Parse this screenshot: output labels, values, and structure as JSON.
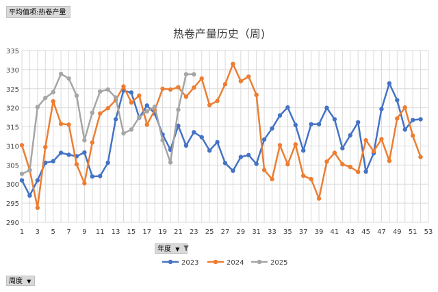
{
  "pivot": {
    "value_field": "平均值项:热卷产量",
    "filter_field": "年度",
    "axis_field": "周度"
  },
  "icons": {
    "filter": "filter-icon",
    "dropdown": "dropdown-arrow-icon"
  },
  "chart_data": {
    "type": "line",
    "title": "热卷产量历史（周)",
    "xlabel": "",
    "ylabel": "",
    "ylim": [
      290,
      335
    ],
    "yticks": [
      290,
      295,
      300,
      305,
      310,
      315,
      320,
      325,
      330,
      335
    ],
    "xlim": [
      1,
      53
    ],
    "xticks": [
      1,
      3,
      5,
      7,
      9,
      11,
      13,
      15,
      17,
      19,
      21,
      23,
      25,
      27,
      29,
      31,
      33,
      35,
      37,
      39,
      41,
      43,
      45,
      47,
      49,
      51,
      53
    ],
    "grid": true,
    "legend_position": "bottom",
    "series": [
      {
        "name": "2023",
        "color": "#4472c4",
        "x": [
          1,
          2,
          3,
          4,
          5,
          6,
          7,
          8,
          9,
          10,
          11,
          12,
          13,
          14,
          15,
          16,
          17,
          18,
          19,
          20,
          21,
          22,
          23,
          24,
          25,
          26,
          27,
          28,
          29,
          30,
          31,
          32,
          33,
          34,
          35,
          36,
          37,
          38,
          39,
          40,
          41,
          42,
          43,
          44,
          45,
          46,
          47,
          48,
          49,
          50,
          51,
          52
        ],
        "values": [
          301.0,
          297.0,
          301.0,
          305.6,
          306.0,
          308.2,
          307.7,
          307.3,
          308.3,
          302.0,
          302.1,
          305.6,
          317.0,
          324.5,
          324.0,
          317.4,
          320.6,
          318.5,
          313.0,
          309.0,
          315.3,
          310.1,
          313.6,
          312.3,
          308.8,
          311.0,
          305.5,
          303.5,
          307.1,
          307.6,
          305.3,
          311.7,
          314.6,
          318.0,
          320.1,
          315.5,
          308.8,
          315.7,
          315.7,
          320.0,
          317.0,
          309.4,
          312.8,
          316.2,
          303.3,
          308.1,
          319.7,
          326.4,
          322.0,
          314.3,
          316.8,
          317.0
        ]
      },
      {
        "name": "2024",
        "color": "#ed7d31",
        "x": [
          1,
          2,
          3,
          4,
          5,
          6,
          7,
          8,
          9,
          10,
          11,
          12,
          13,
          14,
          15,
          16,
          17,
          18,
          19,
          20,
          21,
          22,
          23,
          24,
          25,
          26,
          27,
          28,
          29,
          30,
          31,
          32,
          33,
          34,
          35,
          36,
          37,
          38,
          39,
          40,
          41,
          42,
          43,
          44,
          45,
          46,
          47,
          48,
          49,
          50,
          51,
          52
        ],
        "values": [
          310.2,
          303.7,
          293.8,
          309.7,
          321.7,
          315.8,
          315.6,
          305.2,
          300.2,
          310.9,
          318.5,
          319.9,
          322.0,
          325.6,
          321.4,
          323.2,
          315.6,
          319.4,
          325.0,
          324.8,
          325.4,
          322.9,
          325.3,
          327.7,
          320.7,
          321.8,
          326.2,
          331.5,
          327.0,
          328.2,
          323.4,
          303.7,
          301.3,
          310.2,
          305.2,
          310.4,
          302.2,
          301.3,
          296.2,
          305.9,
          308.2,
          305.2,
          304.5,
          303.2,
          311.5,
          308.6,
          311.8,
          306.1,
          317.2,
          320.1,
          312.7,
          307.1
        ]
      },
      {
        "name": "2025",
        "color": "#a5a5a5",
        "x": [
          1,
          2,
          3,
          4,
          5,
          6,
          7,
          8,
          9,
          10,
          11,
          12,
          13,
          14,
          15,
          16,
          17,
          18,
          19,
          20,
          21,
          22,
          23
        ],
        "values": [
          302.7,
          303.6,
          320.2,
          322.6,
          324.1,
          328.9,
          327.7,
          323.2,
          311.5,
          318.7,
          324.3,
          324.8,
          322.7,
          313.3,
          314.3,
          317.5,
          319.1,
          320.3,
          311.5,
          305.7,
          319.5,
          328.8,
          328.8
        ]
      }
    ]
  }
}
